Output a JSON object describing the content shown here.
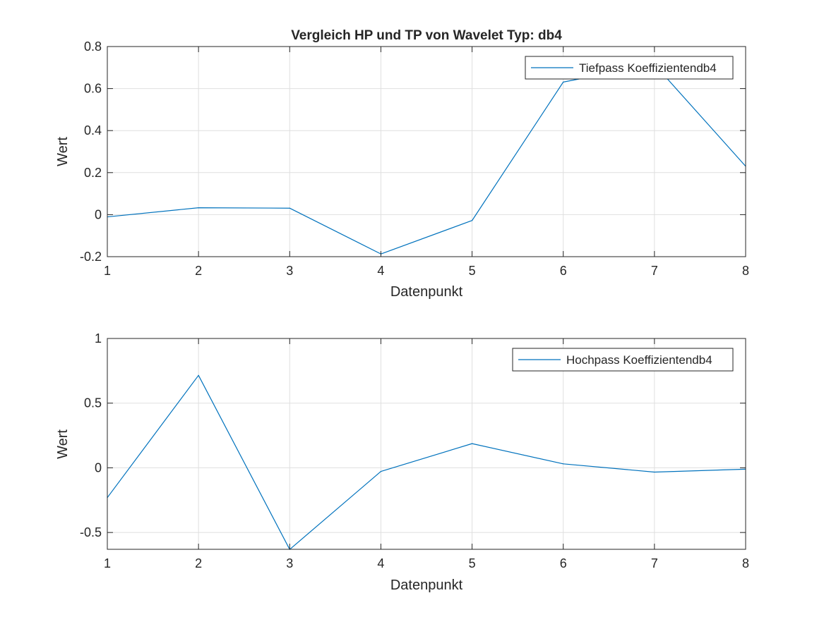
{
  "figure": {
    "background": "#ffffff",
    "axis_color": "#262626",
    "grid_color": "#dfdfdf",
    "line_color": "#0072bd"
  },
  "chart_data": [
    {
      "type": "line",
      "title": "Vergleich HP und TP von Wavelet Typ: db4",
      "xlabel": "Datenpunkt",
      "ylabel": "Wert",
      "xlim": [
        1,
        8
      ],
      "ylim": [
        -0.2,
        0.8
      ],
      "xticks": [
        1,
        2,
        3,
        4,
        5,
        6,
        7,
        8
      ],
      "xtick_labels": [
        "1",
        "2",
        "3",
        "4",
        "5",
        "6",
        "7",
        "8"
      ],
      "yticks": [
        -0.2,
        0,
        0.2,
        0.4,
        0.6,
        0.8
      ],
      "ytick_labels": [
        "-0.2",
        "0",
        "0.2",
        "0.4",
        "0.6",
        "0.8"
      ],
      "grid": true,
      "legend_location": "top-right",
      "series": [
        {
          "name": "Tiefpass Koeffizientendb4",
          "color": "#0072bd",
          "x": [
            1,
            2,
            3,
            4,
            5,
            6,
            7,
            8
          ],
          "values": [
            -0.0106,
            0.0329,
            0.0308,
            -0.187,
            -0.028,
            0.6309,
            0.7148,
            0.2304
          ]
        }
      ]
    },
    {
      "type": "line",
      "title": "",
      "xlabel": "Datenpunkt",
      "ylabel": "Wert",
      "xlim": [
        1,
        8
      ],
      "ylim": [
        -0.63,
        1
      ],
      "xticks": [
        1,
        2,
        3,
        4,
        5,
        6,
        7,
        8
      ],
      "xtick_labels": [
        "1",
        "2",
        "3",
        "4",
        "5",
        "6",
        "7",
        "8"
      ],
      "yticks": [
        -0.5,
        0,
        0.5,
        1
      ],
      "ytick_labels": [
        "-0.5",
        "0",
        "0.5",
        "1"
      ],
      "grid": true,
      "legend_location": "top-right",
      "series": [
        {
          "name": "Hochpass Koeffizientendb4",
          "color": "#0072bd",
          "x": [
            1,
            2,
            3,
            4,
            5,
            6,
            7,
            8
          ],
          "values": [
            -0.2304,
            0.7148,
            -0.6309,
            -0.028,
            0.187,
            0.0308,
            -0.0329,
            -0.0106
          ]
        }
      ]
    }
  ]
}
